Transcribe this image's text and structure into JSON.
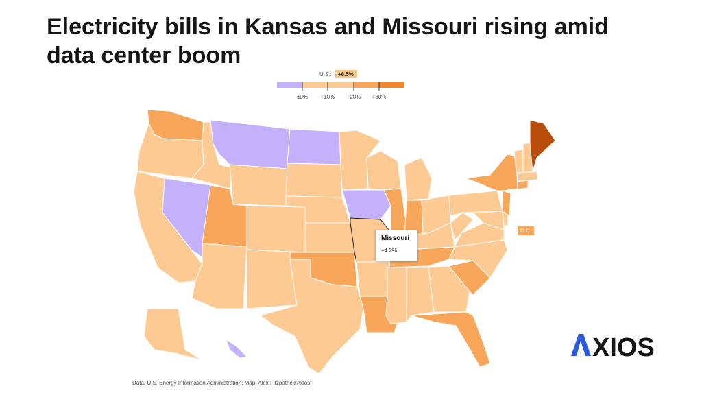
{
  "title_lines": [
    "Electricity bills in Kansas and Missouri rising amid",
    "data center boom"
  ],
  "legend": {
    "us_label": "U.S.:",
    "us_value": "+6.5%",
    "us_color": "#f5c98c",
    "ticks": [
      "±0%",
      "+10%",
      "+20%",
      "+30%"
    ],
    "bins": [
      {
        "range": "<0%",
        "color": "#c4b0fb"
      },
      {
        "range": "0–10%",
        "color": "#fdca93"
      },
      {
        "range": "10–20%",
        "color": "#f8a75a"
      },
      {
        "range": "20–30%",
        "color": "#f4872b"
      },
      {
        "range": ">30%",
        "color": "#b84c0b"
      }
    ]
  },
  "tooltip": {
    "state": "Missouri",
    "value": "+4.2%"
  },
  "dc_label": "D.C.",
  "credit": "Data: U.S. Energy Information Administration; Map: Alex Fitzpatrick/Axios",
  "logo": {
    "text": "AXIOS",
    "accent": "#2d5bdb",
    "color": "#151515"
  },
  "map_data": {
    "bins_by_state": {
      "decrease": [
        "MT",
        "ND",
        "NV",
        "IA",
        "HI"
      ],
      "0-10": [
        "OR",
        "CA",
        "ID",
        "WY",
        "SD",
        "NE",
        "KS",
        "MN",
        "WI",
        "MI",
        "AZ",
        "NM",
        "TX",
        "CO",
        "AR",
        "MS",
        "AL",
        "GA",
        "KY",
        "WV",
        "VA",
        "NC",
        "PA",
        "OH",
        "VT",
        "NH",
        "MA",
        "DE",
        "MD",
        "AK",
        "MO"
      ],
      "10-20": [
        "WA",
        "UT",
        "IL",
        "IN",
        "OK",
        "LA",
        "TN",
        "SC",
        "FL",
        "NY",
        "CT",
        "NJ",
        "DC"
      ],
      "30+": [
        "ME"
      ]
    }
  }
}
